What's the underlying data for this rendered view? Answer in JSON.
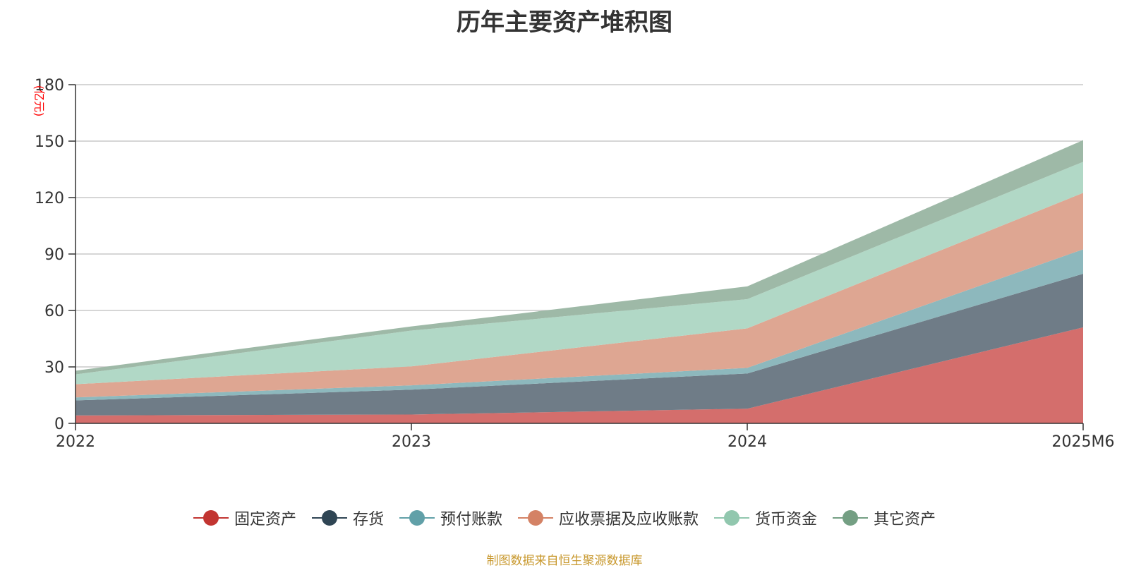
{
  "title": "历年主要资产堆积图",
  "source": "制图数据来自恒生聚源数据库",
  "chart_data": {
    "type": "area",
    "stacked": true,
    "x": [
      "2022",
      "2023",
      "2024",
      "2025M6"
    ],
    "ylabel": "(亿元)",
    "ylim": [
      0,
      180
    ],
    "yticks": [
      0,
      30,
      60,
      90,
      120,
      150,
      180
    ],
    "grid": true,
    "legend_position": "bottom",
    "series": [
      {
        "name": "固定资产",
        "values": [
          4.2,
          4.7,
          7.8,
          51
        ],
        "color": "#c23531",
        "fill": "#d46e6c"
      },
      {
        "name": "存货",
        "values": [
          8,
          13.2,
          18.7,
          28.5
        ],
        "color": "#2f4554",
        "fill": "#6f7c87"
      },
      {
        "name": "预付账款",
        "values": [
          1.6,
          2.3,
          3,
          13
        ],
        "color": "#61a0a8",
        "fill": "#8db8bd"
      },
      {
        "name": "应收票据及应收账款",
        "values": [
          7,
          10.1,
          21,
          30
        ],
        "color": "#d48265",
        "fill": "#dea692"
      },
      {
        "name": "货币资金",
        "values": [
          5.2,
          19,
          15.5,
          16.5
        ],
        "color": "#91c7ae",
        "fill": "#b1d8c6"
      },
      {
        "name": "其它资产",
        "values": [
          2,
          2.2,
          6.8,
          11.5
        ],
        "color": "#749f83",
        "fill": "#9eb9a7"
      }
    ]
  }
}
